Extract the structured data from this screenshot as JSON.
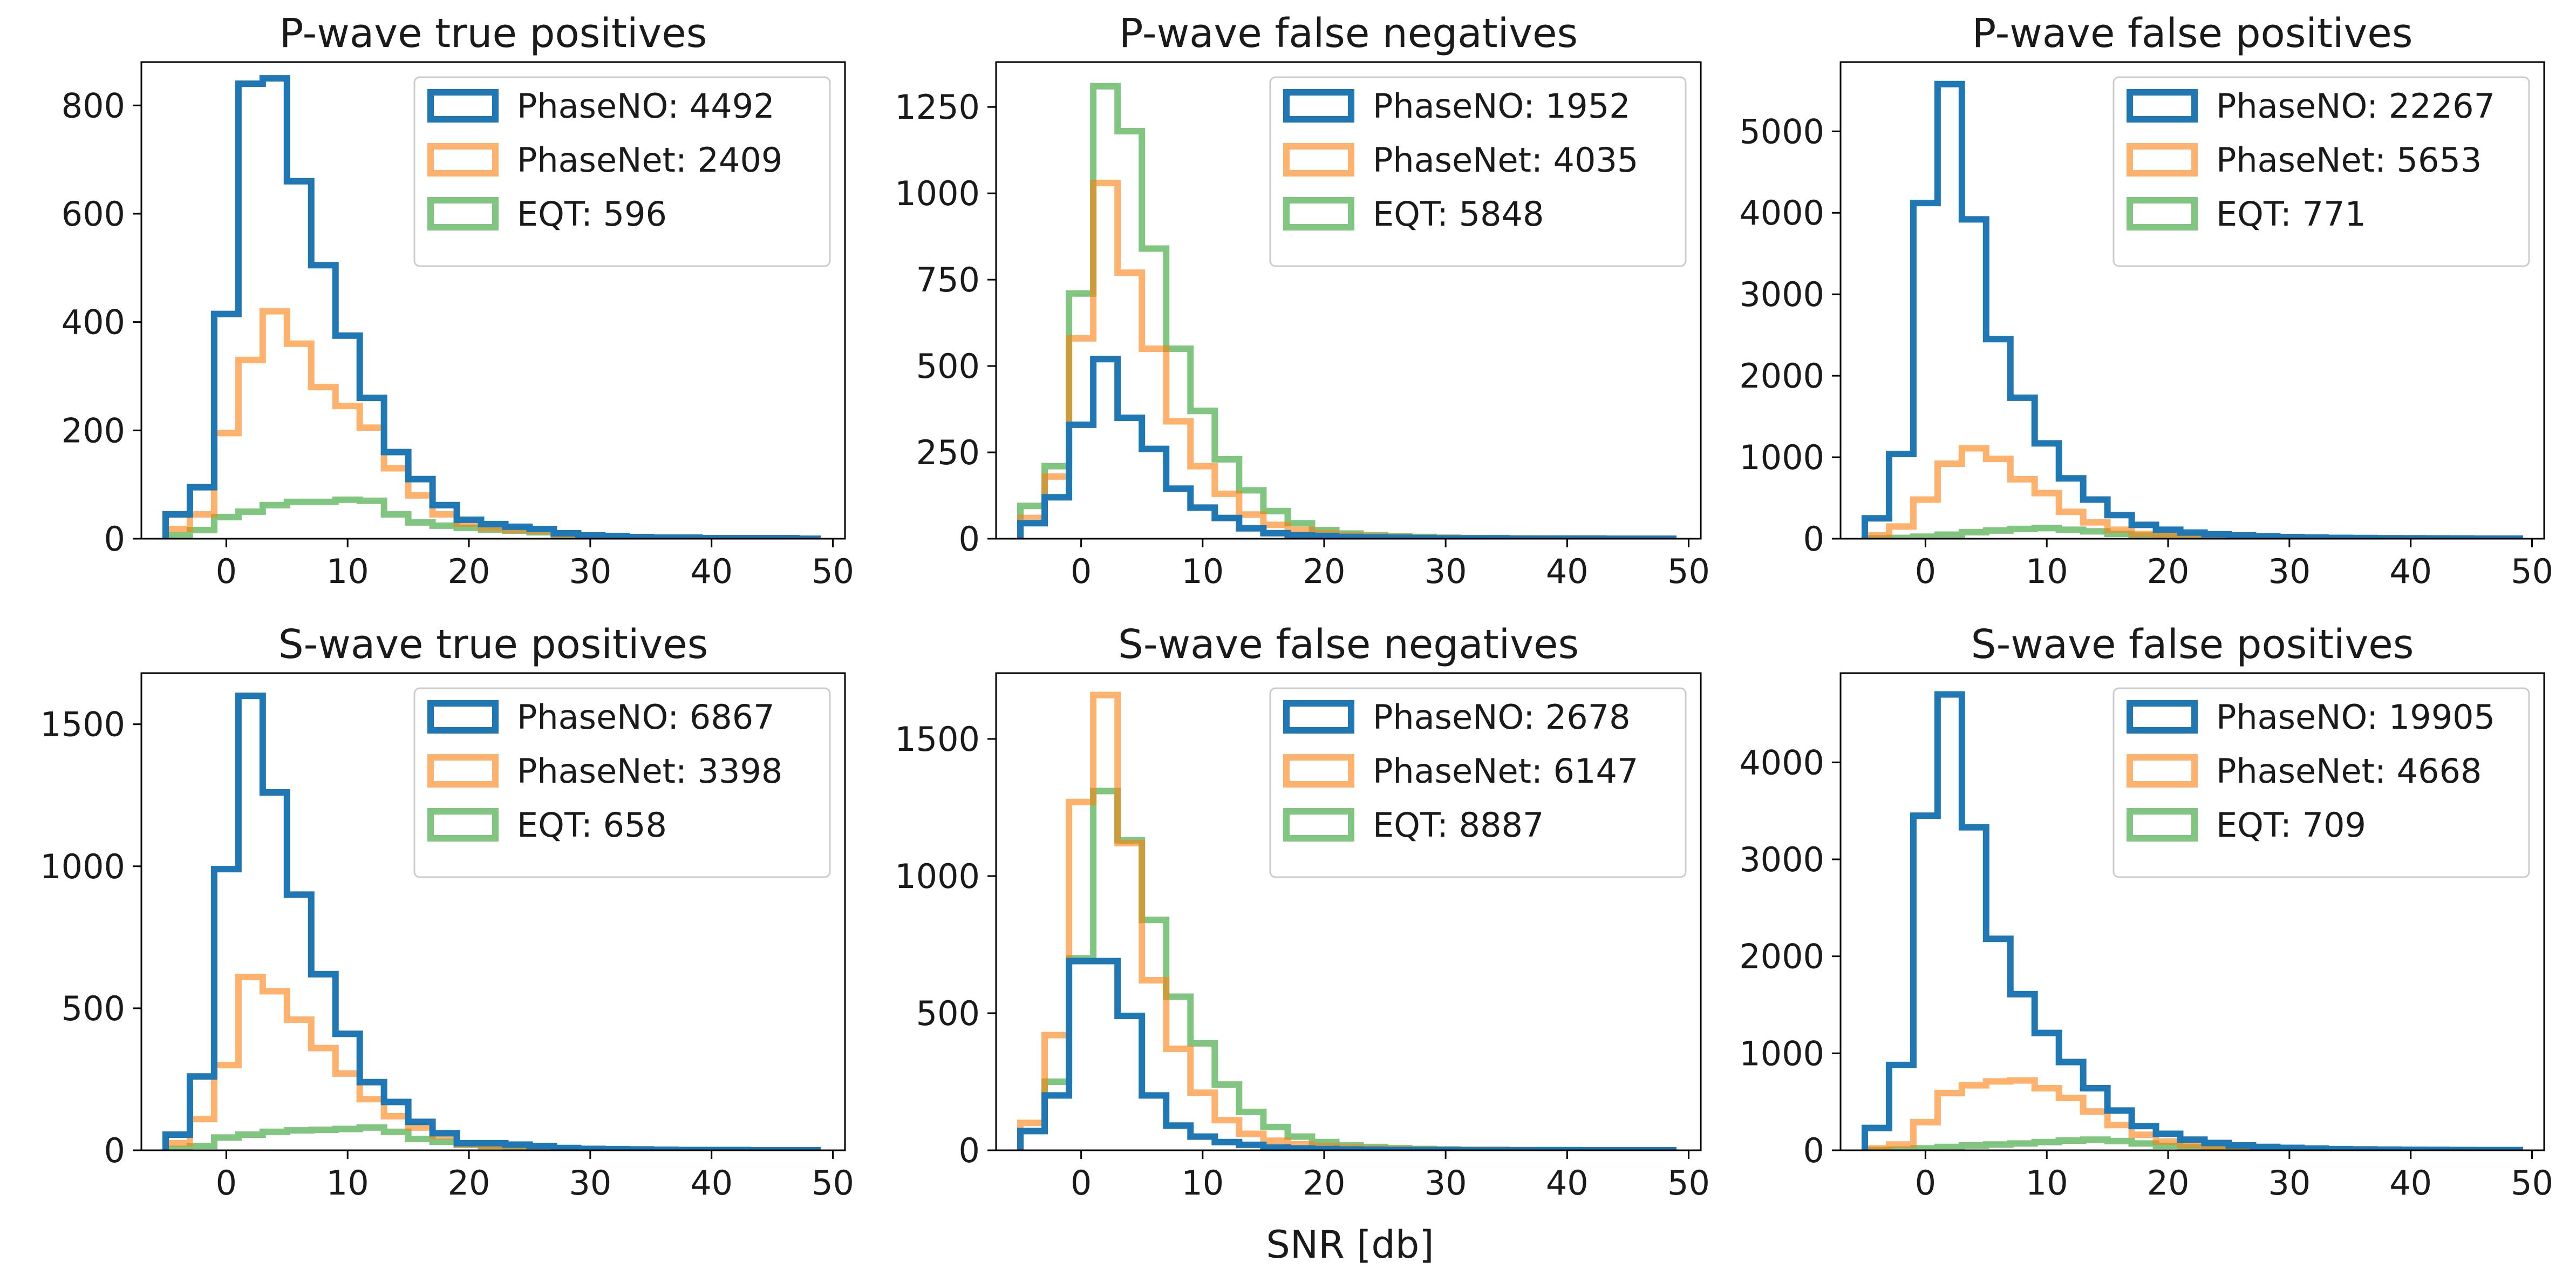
{
  "figure": {
    "xlabel": "SNR [db]",
    "colors": {
      "PhaseNO": "#1f77b4",
      "PhaseNet": "#ff7f0e",
      "EQT": "#2ca02c"
    },
    "opacity": {
      "PhaseNO": 1.0,
      "PhaseNet": 0.6,
      "EQT": 0.6
    }
  },
  "chart_data": [
    {
      "type": "histogram-step",
      "title": "P-wave true positives",
      "xlim": [
        -7,
        51
      ],
      "ylim": [
        0,
        880
      ],
      "xticks": [
        0,
        10,
        20,
        30,
        40,
        50
      ],
      "yticks": [
        0,
        200,
        400,
        600,
        800
      ],
      "bin_edges": [
        -5,
        -3,
        -1,
        1,
        3,
        5,
        7,
        9,
        11,
        13,
        15,
        17,
        19,
        21,
        23,
        25,
        27,
        29,
        31,
        33,
        35,
        37,
        39,
        41,
        43,
        45,
        47,
        49
      ],
      "series": [
        {
          "name": "PhaseNO",
          "label": "PhaseNO: 4492",
          "values": [
            45,
            95,
            415,
            840,
            850,
            660,
            505,
            375,
            260,
            160,
            110,
            62,
            35,
            27,
            22,
            18,
            10,
            6,
            5,
            3,
            2,
            2,
            1,
            1,
            1,
            1,
            0
          ]
        },
        {
          "name": "PhaseNet",
          "label": "PhaseNet: 2409",
          "values": [
            18,
            45,
            195,
            330,
            420,
            360,
            280,
            245,
            205,
            130,
            80,
            45,
            28,
            20,
            16,
            14,
            8,
            5,
            4,
            3,
            2,
            1,
            1,
            1,
            1,
            0,
            0
          ]
        },
        {
          "name": "EQT",
          "label": "EQT: 596",
          "values": [
            6,
            16,
            40,
            50,
            62,
            68,
            68,
            72,
            70,
            45,
            30,
            24,
            20,
            17,
            15,
            12,
            8,
            5,
            4,
            3,
            2,
            2,
            1,
            1,
            1,
            1,
            0
          ]
        }
      ]
    },
    {
      "type": "histogram-step",
      "title": "P-wave false negatives",
      "xlim": [
        -7,
        51
      ],
      "ylim": [
        0,
        1380
      ],
      "xticks": [
        0,
        10,
        20,
        30,
        40,
        50
      ],
      "yticks": [
        0,
        250,
        500,
        750,
        1000,
        1250
      ],
      "bin_edges": [
        -5,
        -3,
        -1,
        1,
        3,
        5,
        7,
        9,
        11,
        13,
        15,
        17,
        19,
        21,
        23,
        25,
        27,
        29,
        31,
        33,
        35,
        37,
        39,
        41,
        43,
        45,
        47,
        49
      ],
      "series": [
        {
          "name": "PhaseNO",
          "label": "PhaseNO: 1952",
          "values": [
            45,
            120,
            330,
            520,
            350,
            260,
            145,
            90,
            60,
            30,
            16,
            10,
            8,
            5,
            4,
            3,
            2,
            1,
            1,
            1,
            0,
            0,
            0,
            0,
            0,
            0,
            0
          ]
        },
        {
          "name": "PhaseNet",
          "label": "PhaseNet: 4035",
          "values": [
            60,
            180,
            580,
            1030,
            770,
            550,
            340,
            210,
            130,
            70,
            40,
            26,
            16,
            10,
            7,
            5,
            3,
            2,
            1,
            1,
            1,
            0,
            0,
            0,
            0,
            0,
            0
          ]
        },
        {
          "name": "EQT",
          "label": "EQT: 5848",
          "values": [
            95,
            210,
            710,
            1310,
            1180,
            840,
            550,
            370,
            230,
            140,
            80,
            45,
            25,
            15,
            10,
            7,
            5,
            3,
            2,
            2,
            1,
            1,
            1,
            1,
            0,
            0,
            0
          ]
        }
      ]
    },
    {
      "type": "histogram-step",
      "title": "P-wave false positives",
      "xlim": [
        -7,
        51
      ],
      "ylim": [
        0,
        5850
      ],
      "xticks": [
        0,
        10,
        20,
        30,
        40,
        50
      ],
      "yticks": [
        0,
        1000,
        2000,
        3000,
        4000,
        5000
      ],
      "bin_edges": [
        -5,
        -3,
        -1,
        1,
        3,
        5,
        7,
        9,
        11,
        13,
        15,
        17,
        19,
        21,
        23,
        25,
        27,
        29,
        31,
        33,
        35,
        37,
        39,
        41,
        43,
        45,
        47,
        49
      ],
      "series": [
        {
          "name": "PhaseNO",
          "label": "PhaseNO: 22267",
          "values": [
            250,
            1040,
            4120,
            5580,
            3920,
            2450,
            1730,
            1170,
            740,
            480,
            290,
            170,
            110,
            75,
            55,
            40,
            30,
            20,
            15,
            10,
            8,
            6,
            5,
            4,
            3,
            2,
            2
          ]
        },
        {
          "name": "PhaseNet",
          "label": "PhaseNet: 5653",
          "values": [
            40,
            150,
            480,
            920,
            1110,
            980,
            730,
            560,
            330,
            200,
            110,
            60,
            35,
            22,
            15,
            10,
            7,
            5,
            4,
            3,
            2,
            2,
            1,
            1,
            1,
            1,
            0
          ]
        },
        {
          "name": "EQT",
          "label": "EQT: 771",
          "values": [
            5,
            10,
            25,
            50,
            80,
            100,
            120,
            130,
            110,
            90,
            60,
            40,
            25,
            15,
            10,
            7,
            5,
            4,
            3,
            2,
            2,
            1,
            1,
            1,
            1,
            0,
            0
          ]
        }
      ]
    },
    {
      "type": "histogram-step",
      "title": "S-wave true positives",
      "xlim": [
        -7,
        51
      ],
      "ylim": [
        0,
        1680
      ],
      "xticks": [
        0,
        10,
        20,
        30,
        40,
        50
      ],
      "yticks": [
        0,
        500,
        1000,
        1500
      ],
      "bin_edges": [
        -5,
        -3,
        -1,
        1,
        3,
        5,
        7,
        9,
        11,
        13,
        15,
        17,
        19,
        21,
        23,
        25,
        27,
        29,
        31,
        33,
        35,
        37,
        39,
        41,
        43,
        45,
        47,
        49
      ],
      "series": [
        {
          "name": "PhaseNO",
          "label": "PhaseNO: 6867",
          "values": [
            55,
            260,
            990,
            1600,
            1260,
            900,
            620,
            410,
            240,
            170,
            100,
            60,
            25,
            25,
            20,
            15,
            8,
            5,
            4,
            3,
            2,
            1,
            1,
            1,
            0,
            0,
            0
          ]
        },
        {
          "name": "PhaseNet",
          "label": "PhaseNet: 3398",
          "values": [
            25,
            110,
            300,
            610,
            560,
            460,
            360,
            270,
            180,
            120,
            80,
            50,
            20,
            15,
            15,
            12,
            6,
            4,
            3,
            2,
            1,
            1,
            1,
            0,
            0,
            0,
            0
          ]
        },
        {
          "name": "EQT",
          "label": "EQT: 658",
          "values": [
            5,
            15,
            45,
            55,
            65,
            70,
            72,
            75,
            80,
            65,
            40,
            30,
            20,
            15,
            12,
            10,
            6,
            4,
            3,
            2,
            2,
            1,
            1,
            1,
            0,
            0,
            0
          ]
        }
      ]
    },
    {
      "type": "histogram-step",
      "title": "S-wave false negatives",
      "xlim": [
        -7,
        51
      ],
      "ylim": [
        0,
        1740
      ],
      "xticks": [
        0,
        10,
        20,
        30,
        40,
        50
      ],
      "yticks": [
        0,
        500,
        1000,
        1500
      ],
      "bin_edges": [
        -5,
        -3,
        -1,
        1,
        3,
        5,
        7,
        9,
        11,
        13,
        15,
        17,
        19,
        21,
        23,
        25,
        27,
        29,
        31,
        33,
        35,
        37,
        39,
        41,
        43,
        45,
        47,
        49
      ],
      "series": [
        {
          "name": "PhaseNO",
          "label": "PhaseNO: 2678",
          "values": [
            70,
            200,
            690,
            690,
            490,
            200,
            90,
            50,
            30,
            20,
            10,
            7,
            5,
            3,
            2,
            1,
            1,
            1,
            0,
            0,
            0,
            0,
            0,
            0,
            0,
            0,
            0
          ]
        },
        {
          "name": "PhaseNet",
          "label": "PhaseNet: 6147",
          "values": [
            100,
            420,
            1270,
            1660,
            1120,
            620,
            370,
            210,
            110,
            60,
            35,
            22,
            15,
            10,
            6,
            4,
            3,
            2,
            1,
            1,
            1,
            0,
            0,
            0,
            0,
            0,
            0
          ]
        },
        {
          "name": "EQT",
          "label": "EQT: 8887",
          "values": [
            70,
            250,
            700,
            1310,
            1130,
            840,
            560,
            390,
            240,
            140,
            85,
            50,
            30,
            18,
            12,
            8,
            5,
            3,
            2,
            2,
            1,
            1,
            1,
            0,
            0,
            0,
            0
          ]
        }
      ]
    },
    {
      "type": "histogram-step",
      "title": "S-wave false positives",
      "xlim": [
        -7,
        51
      ],
      "ylim": [
        0,
        4920
      ],
      "xticks": [
        0,
        10,
        20,
        30,
        40,
        50
      ],
      "yticks": [
        0,
        1000,
        2000,
        3000,
        4000
      ],
      "bin_edges": [
        -5,
        -3,
        -1,
        1,
        3,
        5,
        7,
        9,
        11,
        13,
        15,
        17,
        19,
        21,
        23,
        25,
        27,
        29,
        31,
        33,
        35,
        37,
        39,
        41,
        43,
        45,
        47,
        49
      ],
      "series": [
        {
          "name": "PhaseNO",
          "label": "PhaseNO: 19905",
          "values": [
            230,
            880,
            3450,
            4700,
            3330,
            2180,
            1610,
            1210,
            910,
            640,
            410,
            250,
            170,
            110,
            75,
            50,
            35,
            25,
            18,
            12,
            9,
            7,
            5,
            4,
            3,
            2,
            2
          ]
        },
        {
          "name": "PhaseNet",
          "label": "PhaseNet: 4668",
          "values": [
            20,
            60,
            290,
            590,
            670,
            710,
            720,
            640,
            540,
            400,
            260,
            160,
            90,
            55,
            35,
            22,
            15,
            10,
            7,
            5,
            4,
            3,
            2,
            1,
            1,
            1,
            0
          ]
        },
        {
          "name": "EQT",
          "label": "EQT: 709",
          "values": [
            3,
            8,
            20,
            35,
            50,
            60,
            70,
            85,
            100,
            110,
            95,
            70,
            45,
            30,
            20,
            14,
            9,
            6,
            4,
            3,
            2,
            2,
            1,
            1,
            1,
            0,
            0
          ]
        }
      ]
    }
  ]
}
